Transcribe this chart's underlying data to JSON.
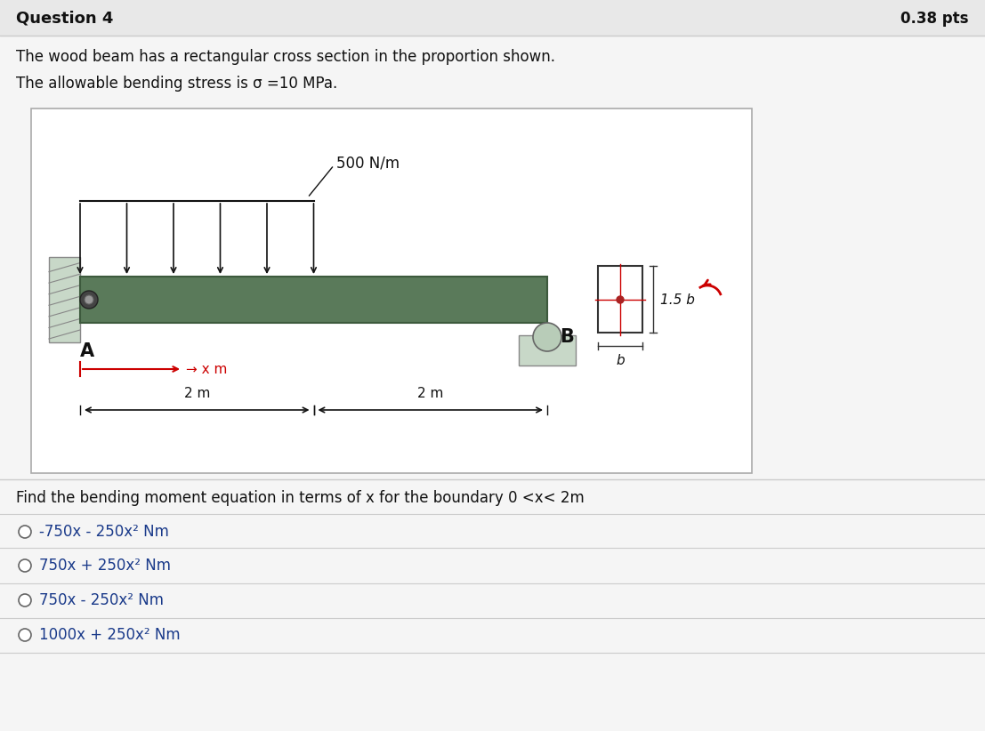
{
  "title": "Question 4",
  "pts": "0.38 pts",
  "line1": "The wood beam has a rectangular cross section in the proportion shown.",
  "line2": "The allowable bending stress is σ =10 MPa.",
  "load_label": "500 N/m",
  "label_A": "A",
  "label_B": "B",
  "x_label": "x m",
  "dim1": "2 m",
  "dim2": "2 m",
  "cross_label1": "1.5 b",
  "cross_label2": "b",
  "question_text": "Find the bending moment equation in terms of x for the boundary 0 <x< 2m",
  "options": [
    "-750x - 250x² Nm",
    "750x + 250x² Nm",
    "750x - 250x² Nm",
    "1000x + 250x² Nm"
  ],
  "bg_color": "#f5f5f5",
  "header_bg": "#e8e8e8",
  "beam_color": "#5a7a5a",
  "beam_dark": "#3d5a3d",
  "wall_color": "#c8d8c8",
  "support_color": "#c8d8c8",
  "red_color": "#cc0000",
  "diagram_bg": "#ffffff",
  "option_text_color": "#1a3a8a"
}
